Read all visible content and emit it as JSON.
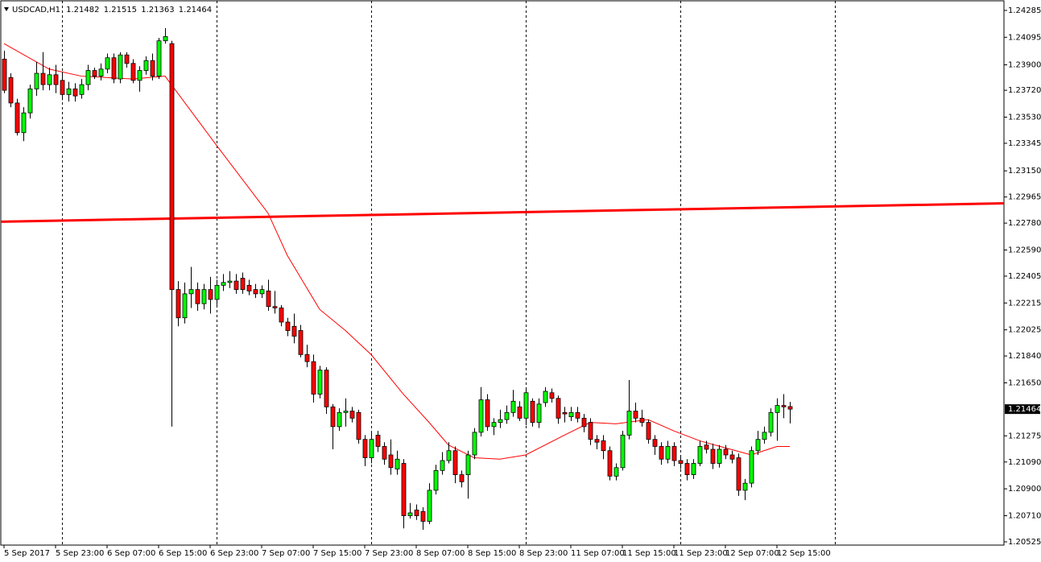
{
  "chart_data": {
    "type": "candlestick",
    "title": "USDCAD,H1",
    "up_color": "#00ff00",
    "down_color": "#ff0000",
    "open": [
      1.2394,
      1.2381,
      1.2363,
      1.2342,
      1.2356,
      1.2373,
      1.2384,
      1.2376,
      1.2383,
      1.2379,
      1.2369,
      1.2373,
      1.2369,
      1.2376,
      1.2386,
      1.2382,
      1.2387,
      1.2395,
      1.238,
      1.2397,
      1.2391,
      1.2379,
      1.2386,
      1.2393,
      1.2382,
      1.2407,
      1.2405,
      1.2231,
      1.2211,
      1.2228,
      1.2231,
      1.2221,
      1.2231,
      1.2224,
      1.2234,
      1.2236,
      1.2237,
      1.2239,
      1.2234,
      1.2231,
      1.2228,
      1.223,
      1.2219,
      1.2218,
      1.2208,
      1.2205,
      1.2202,
      1.2185,
      1.218,
      1.2157,
      1.2174,
      1.2148,
      1.2134,
      1.2144,
      1.2145,
      1.2144,
      1.2125,
      1.2112,
      1.2128,
      1.212,
      1.2114,
      1.2104,
      1.2108,
      1.2071,
      1.2075,
      1.2074,
      1.2067,
      1.2089,
      1.2103,
      1.211,
      1.2117,
      1.21,
      1.21,
      1.2114,
      1.213,
      1.2153,
      1.2134,
      1.2137,
      1.2139,
      1.2144,
      1.2148,
      1.214,
      1.2152,
      1.2137,
      1.2151,
      1.2158,
      1.2154,
      1.2144,
      1.2141,
      1.2144,
      1.214,
      1.2137,
      1.2125,
      1.2124,
      1.2117,
      1.2099,
      1.2105,
      1.2128,
      1.2145,
      1.214,
      1.2137,
      1.2125,
      1.212,
      1.2111,
      1.212,
      1.211,
      1.2108,
      1.21,
      1.2108,
      1.2121,
      1.2118,
      1.2108,
      1.2118,
      1.2114,
      1.2112,
      1.2089,
      1.2094,
      1.2117,
      1.2125,
      1.213,
      1.2144,
      1.2149,
      1.21482
    ],
    "high": [
      1.24,
      1.2384,
      1.2366,
      1.236,
      1.2376,
      1.2392,
      1.2399,
      1.2388,
      1.239,
      1.2385,
      1.2378,
      1.2377,
      1.238,
      1.239,
      1.2388,
      1.2391,
      1.2398,
      1.2398,
      1.2399,
      1.2399,
      1.2394,
      1.2389,
      1.2396,
      1.2398,
      1.2409,
      1.2416,
      1.2407,
      1.2237,
      1.2236,
      1.2247,
      1.2236,
      1.2235,
      1.224,
      1.2238,
      1.2242,
      1.2244,
      1.2242,
      1.2243,
      1.2238,
      1.2235,
      1.2234,
      1.2238,
      1.223,
      1.222,
      1.2211,
      1.2214,
      1.2206,
      1.2192,
      1.2185,
      1.2177,
      1.2176,
      1.215,
      1.2147,
      1.2154,
      1.2148,
      1.2146,
      1.2128,
      1.2131,
      1.2131,
      1.2123,
      1.2125,
      1.2117,
      1.2111,
      1.208,
      1.2079,
      1.2077,
      1.2094,
      1.2107,
      1.2116,
      1.2123,
      1.212,
      1.2103,
      1.2117,
      1.2133,
      1.2162,
      1.2157,
      1.214,
      1.2146,
      1.2149,
      1.216,
      1.2152,
      1.2161,
      1.2154,
      1.2154,
      1.2162,
      1.2161,
      1.2156,
      1.2148,
      1.2148,
      1.2148,
      1.2143,
      1.214,
      1.2128,
      1.2128,
      1.212,
      1.2108,
      1.2131,
      1.2167,
      1.2151,
      1.2146,
      1.2139,
      1.2128,
      1.2123,
      1.2124,
      1.2123,
      1.2113,
      1.2111,
      1.2111,
      1.2124,
      1.2124,
      1.2122,
      1.2121,
      1.2121,
      1.2117,
      1.2115,
      1.2097,
      1.212,
      1.2131,
      1.2134,
      1.2147,
      1.2154,
      1.2157,
      1.21515
    ],
    "low": [
      1.237,
      1.236,
      1.234,
      1.2336,
      1.2352,
      1.2368,
      1.2372,
      1.2372,
      1.237,
      1.2365,
      1.2364,
      1.2364,
      1.2366,
      1.2372,
      1.238,
      1.2379,
      1.2384,
      1.2377,
      1.2377,
      1.2388,
      1.2377,
      1.2371,
      1.2383,
      1.2379,
      1.238,
      1.2405,
      1.2134,
      1.2205,
      1.2207,
      1.2218,
      1.2216,
      1.2217,
      1.2214,
      1.222,
      1.223,
      1.2232,
      1.2228,
      1.2228,
      1.2227,
      1.2225,
      1.2225,
      1.2216,
      1.2214,
      1.2205,
      1.2198,
      1.2193,
      1.2183,
      1.2176,
      1.2151,
      1.2154,
      1.2143,
      1.2118,
      1.2131,
      1.2134,
      1.2137,
      1.2122,
      1.2106,
      1.2108,
      1.2116,
      1.2107,
      1.21,
      1.21,
      1.2062,
      1.2069,
      1.2068,
      1.2061,
      1.2065,
      1.2086,
      1.21,
      1.2108,
      1.2094,
      1.2091,
      1.2083,
      1.2111,
      1.2127,
      1.2131,
      1.2128,
      1.2133,
      1.2136,
      1.2141,
      1.2138,
      1.2135,
      1.2134,
      1.2133,
      1.2148,
      1.2151,
      1.2136,
      1.2137,
      1.2138,
      1.2137,
      1.213,
      1.2121,
      1.2118,
      1.2111,
      1.2096,
      1.2096,
      1.2103,
      1.2125,
      1.2137,
      1.2134,
      1.2122,
      1.2114,
      1.2107,
      1.2108,
      1.2106,
      1.2104,
      1.2096,
      1.2097,
      1.2106,
      1.2115,
      1.2104,
      1.2105,
      1.2111,
      1.2108,
      1.2085,
      1.2082,
      1.2091,
      1.2114,
      1.2122,
      1.2127,
      1.2124,
      1.214,
      1.21363
    ],
    "close": [
      1.2372,
      1.2363,
      1.2342,
      1.2356,
      1.2373,
      1.2384,
      1.2376,
      1.2383,
      1.2376,
      1.2369,
      1.2373,
      1.2368,
      1.2376,
      1.2386,
      1.2382,
      1.2387,
      1.2395,
      1.238,
      1.2397,
      1.2391,
      1.2379,
      1.2386,
      1.2393,
      1.2382,
      1.2407,
      1.241,
      1.2231,
      1.2211,
      1.2228,
      1.2231,
      1.2221,
      1.2231,
      1.2224,
      1.2234,
      1.2236,
      1.2237,
      1.2231,
      1.2231,
      1.223,
      1.2228,
      1.2231,
      1.2219,
      1.2218,
      1.2208,
      1.2202,
      1.2198,
      1.2185,
      1.218,
      1.2157,
      1.2174,
      1.2148,
      1.2134,
      1.2144,
      1.2145,
      1.214,
      1.2125,
      1.2112,
      1.2125,
      1.212,
      1.2111,
      1.2105,
      1.2111,
      1.2071,
      1.2073,
      1.2071,
      1.2067,
      1.2089,
      1.2103,
      1.211,
      1.2117,
      1.21,
      1.2095,
      1.2114,
      1.213,
      1.2153,
      1.2134,
      1.2137,
      1.2139,
      1.2144,
      1.2152,
      1.214,
      1.2158,
      1.2137,
      1.215,
      1.2159,
      1.2154,
      1.214,
      1.2143,
      1.2144,
      1.214,
      1.2134,
      1.2125,
      1.2123,
      1.2117,
      1.2099,
      1.2105,
      1.2128,
      1.2145,
      1.214,
      1.2137,
      1.2125,
      1.212,
      1.2111,
      1.212,
      1.211,
      1.2108,
      1.21,
      1.2108,
      1.212,
      1.2118,
      1.2108,
      1.2118,
      1.2114,
      1.2111,
      1.2089,
      1.2094,
      1.2117,
      1.2125,
      1.213,
      1.2144,
      1.2149,
      1.2148,
      1.21464
    ],
    "moving_average": {
      "color": "#ff0000",
      "x": [
        0,
        7,
        12,
        20,
        25,
        33,
        41,
        44,
        49,
        53,
        57,
        62,
        66,
        69,
        73,
        77,
        81,
        87,
        91,
        95,
        100,
        104,
        108,
        112,
        116,
        118,
        120,
        122
      ],
      "values": [
        1.2405,
        1.2387,
        1.2382,
        1.238,
        1.2382,
        1.2333,
        1.2285,
        1.2255,
        1.2217,
        1.2202,
        1.2185,
        1.2157,
        1.2137,
        1.2121,
        1.2112,
        1.2111,
        1.2114,
        1.2128,
        1.2137,
        1.2136,
        1.2139,
        1.2131,
        1.2124,
        1.2119,
        1.2114,
        1.2117,
        1.212,
        1.212
      ]
    },
    "level_line": {
      "color": "#ff0000",
      "x": [
        -0.5,
        155.25
      ],
      "values": [
        1.2279,
        1.2292
      ]
    },
    "separators": [
      9,
      33,
      57,
      81,
      105,
      129
    ],
    "xlim": [
      -0.5,
      155.25
    ],
    "xticks": [
      {
        "value": 0,
        "label": "5 Sep 2017"
      },
      {
        "value": 8,
        "label": "5 Sep 23:00"
      },
      {
        "value": 16,
        "label": "6 Sep 07:00"
      },
      {
        "value": 24,
        "label": "6 Sep 15:00"
      },
      {
        "value": 32,
        "label": "6 Sep 23:00"
      },
      {
        "value": 40,
        "label": "7 Sep 07:00"
      },
      {
        "value": 48,
        "label": "7 Sep 15:00"
      },
      {
        "value": 56,
        "label": "7 Sep 23:00"
      },
      {
        "value": 64,
        "label": "8 Sep 07:00"
      },
      {
        "value": 72,
        "label": "8 Sep 15:00"
      },
      {
        "value": 80,
        "label": "8 Sep 23:00"
      },
      {
        "value": 88,
        "label": "11 Sep 07:00"
      },
      {
        "value": 96,
        "label": "11 Sep 15:00"
      },
      {
        "value": 104,
        "label": "11 Sep 23:00"
      },
      {
        "value": 112,
        "label": "12 Sep 07:00"
      },
      {
        "value": 120,
        "label": "12 Sep 15:00"
      }
    ],
    "ylim": [
      1.20502,
      1.24353
    ],
    "yticks": [
      1.24285,
      1.24095,
      {
        "value": 1.239,
        "label": "1.23900"
      },
      {
        "value": 1.2372,
        "label": "1.23720"
      },
      {
        "value": 1.2353,
        "label": "1.23530"
      },
      1.23345,
      {
        "value": 1.2315,
        "label": "1.23150"
      },
      1.22965,
      {
        "value": 1.2278,
        "label": "1.22780"
      },
      {
        "value": 1.2259,
        "label": "1.22590"
      },
      1.22405,
      1.22215,
      1.22025,
      {
        "value": 1.2184,
        "label": "1.21840"
      },
      {
        "value": 1.2165,
        "label": "1.21650"
      },
      1.21275,
      {
        "value": 1.2109,
        "label": "1.21090"
      },
      {
        "value": 1.209,
        "label": "1.20900"
      },
      {
        "value": 1.2071,
        "label": "1.20710"
      },
      1.20525
    ],
    "grid": false
  }
}
